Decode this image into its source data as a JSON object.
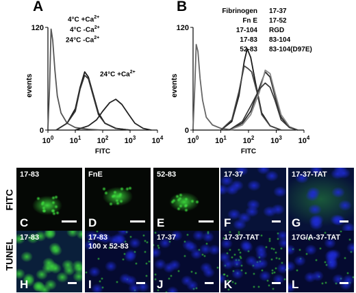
{
  "panels": {
    "A": {
      "letter": "A",
      "conditions": [
        {
          "temp": "4°C +Ca",
          "ion": "2+"
        },
        {
          "temp": "4°C  -Ca",
          "ion": "2+"
        },
        {
          "temp": "24°C  -Ca",
          "ion": "2+"
        }
      ],
      "curve_label": {
        "temp": "24°C +Ca",
        "ion": "2+"
      }
    },
    "B": {
      "letter": "B",
      "legend_col1": [
        "Fibrinogen",
        "Fn E",
        "17-104",
        "17-83",
        "52-83"
      ],
      "legend_col2": [
        "17-37",
        "17-52",
        "RGD",
        "83-104",
        "83-104(D97E)"
      ]
    }
  },
  "chart_data": [
    {
      "type": "line",
      "panel": "A",
      "xlabel": "FITC",
      "ylabel": "events",
      "xscale": "log",
      "xlim": [
        1,
        10000
      ],
      "ylim": [
        0,
        120
      ],
      "x_ticks": [
        "10⁰",
        "10¹",
        "10²",
        "10³",
        "10⁴"
      ],
      "y_ticks": [
        "0",
        "120"
      ],
      "series": [
        {
          "points": [
            [
              1.0,
              2
            ],
            [
              1.15,
              50
            ],
            [
              1.3,
              118
            ],
            [
              1.5,
              105
            ],
            [
              1.8,
              70
            ],
            [
              2.2,
              40
            ],
            [
              3,
              20
            ],
            [
              5,
              8
            ],
            [
              10,
              3
            ],
            [
              30,
              1
            ],
            [
              100,
              0
            ]
          ]
        },
        {
          "points": [
            [
              2,
              0
            ],
            [
              5,
              8
            ],
            [
              10,
              25
            ],
            [
              15,
              50
            ],
            [
              22,
              68
            ],
            [
              30,
              62
            ],
            [
              45,
              42
            ],
            [
              70,
              20
            ],
            [
              120,
              8
            ],
            [
              300,
              2
            ],
            [
              1000,
              0
            ]
          ]
        },
        {
          "points": [
            [
              2,
              0
            ],
            [
              5,
              8
            ],
            [
              10,
              22
            ],
            [
              15,
              48
            ],
            [
              22,
              64
            ],
            [
              30,
              60
            ],
            [
              45,
              40
            ],
            [
              70,
              18
            ],
            [
              120,
              8
            ],
            [
              300,
              2
            ],
            [
              1000,
              0
            ]
          ]
        },
        {
          "points": [
            [
              10,
              0
            ],
            [
              30,
              5
            ],
            [
              60,
              12
            ],
            [
              100,
              22
            ],
            [
              180,
              32
            ],
            [
              300,
              36
            ],
            [
              500,
              30
            ],
            [
              900,
              18
            ],
            [
              1500,
              8
            ],
            [
              3000,
              2
            ],
            [
              6000,
              0
            ]
          ]
        }
      ]
    },
    {
      "type": "line",
      "panel": "B",
      "xlabel": "FITC",
      "ylabel": "events",
      "xscale": "log",
      "xlim": [
        1,
        10000
      ],
      "ylim": [
        0,
        120
      ],
      "x_ticks": [
        "10⁰",
        "10¹",
        "10²",
        "10³",
        "10⁴"
      ],
      "y_ticks": [
        "0",
        "120"
      ],
      "series": [
        {
          "points": [
            [
              1.0,
              2
            ],
            [
              1.15,
              50
            ],
            [
              1.3,
              100
            ],
            [
              1.5,
              92
            ],
            [
              1.8,
              60
            ],
            [
              2.2,
              35
            ],
            [
              3,
              15
            ],
            [
              5,
              6
            ],
            [
              10,
              2
            ],
            [
              30,
              0
            ]
          ]
        },
        {
          "points": [
            [
              10,
              0
            ],
            [
              25,
              10
            ],
            [
              45,
              40
            ],
            [
              70,
              80
            ],
            [
              90,
              95
            ],
            [
              120,
              85
            ],
            [
              180,
              55
            ],
            [
              300,
              20
            ],
            [
              600,
              5
            ],
            [
              1500,
              0
            ]
          ]
        },
        {
          "points": [
            [
              10,
              0
            ],
            [
              25,
              12
            ],
            [
              45,
              45
            ],
            [
              70,
              75
            ],
            [
              95,
              72
            ],
            [
              130,
              68
            ],
            [
              200,
              45
            ],
            [
              300,
              18
            ],
            [
              600,
              5
            ],
            [
              1500,
              0
            ]
          ]
        },
        {
          "points": [
            [
              20,
              0
            ],
            [
              60,
              8
            ],
            [
              120,
              22
            ],
            [
              250,
              50
            ],
            [
              400,
              68
            ],
            [
              600,
              62
            ],
            [
              900,
              40
            ],
            [
              1500,
              15
            ],
            [
              3000,
              3
            ],
            [
              6000,
              0
            ]
          ]
        },
        {
          "points": [
            [
              20,
              0
            ],
            [
              60,
              6
            ],
            [
              120,
              18
            ],
            [
              250,
              45
            ],
            [
              400,
              70
            ],
            [
              600,
              66
            ],
            [
              900,
              44
            ],
            [
              1500,
              18
            ],
            [
              3000,
              4
            ],
            [
              6000,
              0
            ]
          ]
        },
        {
          "points": [
            [
              20,
              0
            ],
            [
              60,
              10
            ],
            [
              120,
              28
            ],
            [
              250,
              48
            ],
            [
              400,
              55
            ],
            [
              600,
              50
            ],
            [
              900,
              35
            ],
            [
              1500,
              12
            ],
            [
              3000,
              3
            ],
            [
              6000,
              0
            ]
          ]
        }
      ]
    }
  ],
  "rows": {
    "fitc_label": "FITC",
    "tunel_label": "TUNEL",
    "fitc": [
      {
        "label": "17-83",
        "letter": "C",
        "scale": true
      },
      {
        "label": "FnE",
        "letter": "D",
        "scale": true
      },
      {
        "label": "52-83",
        "letter": "E",
        "scale": true
      },
      {
        "label": "17-37",
        "letter": "F",
        "scale": true
      },
      {
        "label": "17-37-TAT",
        "letter": "G",
        "scale": true
      }
    ],
    "tunel": [
      {
        "label": "17-83",
        "letter": "H",
        "scale": true
      },
      {
        "label": "17-83\n100 x 52-83",
        "letter": "I",
        "scale": true
      },
      {
        "label": "17-37",
        "letter": "J",
        "scale": true
      },
      {
        "label": "17-37-TAT",
        "letter": "K",
        "scale": true
      },
      {
        "label": "17G/A-37-TAT",
        "letter": "L",
        "scale": true
      }
    ]
  },
  "colors": {
    "green": "#3ddc3d",
    "blue": "#1e2bd6",
    "bg": "#050805"
  }
}
